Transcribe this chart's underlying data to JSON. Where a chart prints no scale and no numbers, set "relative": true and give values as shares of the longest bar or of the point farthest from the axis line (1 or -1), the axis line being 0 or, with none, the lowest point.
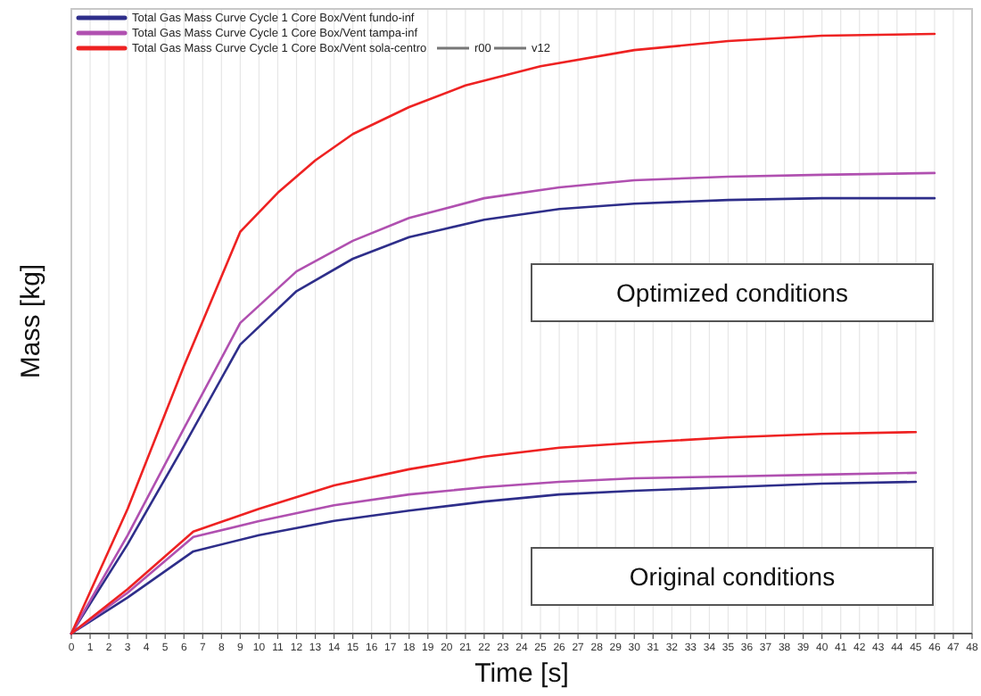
{
  "chart_data": {
    "type": "line",
    "relative": true,
    "xlabel": "Time [s]",
    "ylabel": "Mass [kg]",
    "xlim": [
      0,
      48
    ],
    "xticks": [
      0,
      1,
      2,
      3,
      4,
      5,
      6,
      7,
      8,
      9,
      10,
      11,
      12,
      13,
      14,
      15,
      16,
      17,
      18,
      19,
      20,
      21,
      22,
      23,
      24,
      25,
      26,
      27,
      28,
      29,
      30,
      31,
      32,
      33,
      34,
      35,
      36,
      37,
      38,
      39,
      40,
      41,
      42,
      43,
      44,
      45,
      46,
      47,
      48
    ],
    "grid": "x",
    "legend": "top left",
    "line_style": "solid",
    "marker": "none",
    "annotations": [
      "Optimized conditions",
      "Original conditions",
      "r00",
      "v12"
    ],
    "series": [
      {
        "name": "Total Gas Mass Curve Cycle 1 Core Box/Vent fundo-inf",
        "color": "#2e2e8a",
        "x": [
          0,
          3,
          6,
          9,
          12,
          15,
          18,
          22,
          26,
          30,
          35,
          40,
          46
        ],
        "values": [
          0,
          0.149,
          0.313,
          0.482,
          0.571,
          0.625,
          0.661,
          0.69,
          0.708,
          0.717,
          0.723,
          0.726,
          0.726
        ]
      },
      {
        "name": "Total Gas Mass Curve Cycle 1 Core Box/Vent tampa-inf",
        "color": "#b050b0",
        "x": [
          0,
          3,
          6,
          9,
          12,
          15,
          18,
          22,
          26,
          30,
          35,
          40,
          46
        ],
        "values": [
          0,
          0.164,
          0.342,
          0.518,
          0.604,
          0.655,
          0.693,
          0.726,
          0.744,
          0.756,
          0.762,
          0.765,
          0.768
        ]
      },
      {
        "name": "Total Gas Mass Curve Cycle 1 Core Box/Vent sola-centro",
        "color": "#ee2222",
        "x": [
          0,
          3,
          6,
          9,
          11,
          13,
          15,
          18,
          21,
          25,
          30,
          35,
          40,
          46
        ],
        "values": [
          0,
          0.208,
          0.446,
          0.67,
          0.735,
          0.789,
          0.833,
          0.878,
          0.914,
          0.946,
          0.973,
          0.988,
          0.997,
          1
        ]
      },
      {
        "color": "#2e2e8a",
        "x": [
          0,
          3,
          6.5,
          10,
          14,
          18,
          22,
          26,
          30,
          35,
          40,
          45
        ],
        "values": [
          0,
          0.06,
          0.137,
          0.164,
          0.188,
          0.205,
          0.22,
          0.232,
          0.238,
          0.244,
          0.25,
          0.253
        ]
      },
      {
        "color": "#b050b0",
        "x": [
          0,
          3,
          6.5,
          10,
          14,
          18,
          22,
          26,
          30,
          35,
          40,
          45
        ],
        "values": [
          0,
          0.068,
          0.161,
          0.1875,
          0.214,
          0.232,
          0.244,
          0.253,
          0.259,
          0.262,
          0.265,
          0.268
        ]
      },
      {
        "color": "#ee2222",
        "x": [
          0,
          3,
          6.5,
          10,
          14,
          18,
          22,
          26,
          30,
          35,
          40,
          45
        ],
        "values": [
          0,
          0.074,
          0.17,
          0.208,
          0.247,
          0.274,
          0.295,
          0.31,
          0.318,
          0.327,
          0.333,
          0.336
        ]
      }
    ]
  }
}
